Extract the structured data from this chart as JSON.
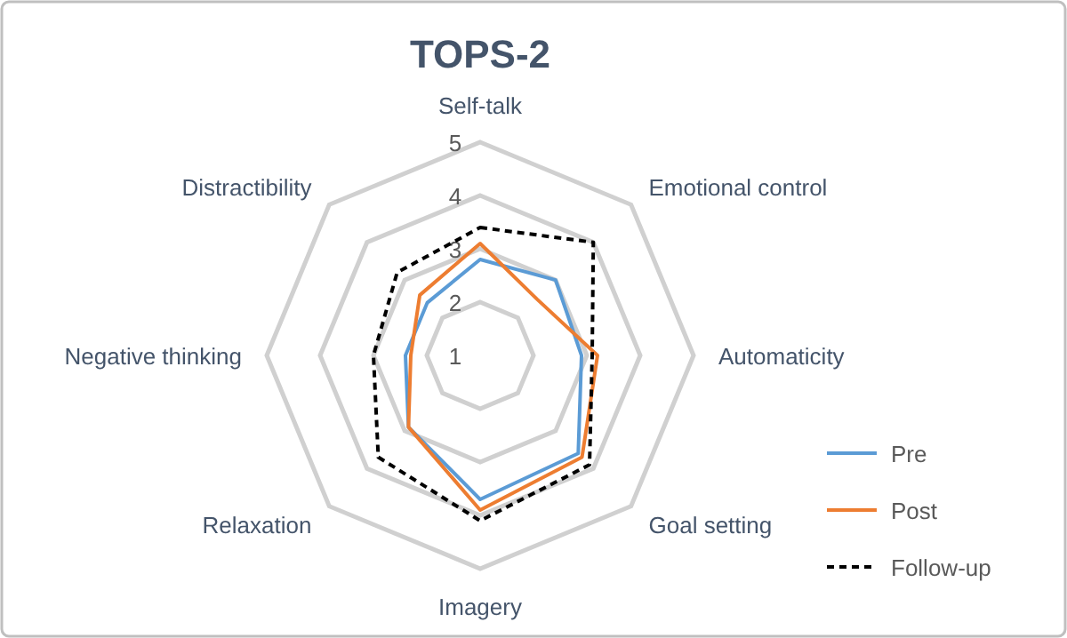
{
  "chart_data": {
    "type": "radar",
    "title": "TOPS-2",
    "categories": [
      "Self-talk",
      "Emotional control",
      "Automaticity",
      "Goal setting",
      "Imagery",
      "Relaxation",
      "Negative thinking",
      "Distractibility"
    ],
    "ylim": [
      1,
      5
    ],
    "yticks": [
      1,
      2,
      3,
      4,
      5
    ],
    "grid": true,
    "legend": "bottom right",
    "series": [
      {
        "name": "Pre",
        "color": "#5b9bd5",
        "line_style": "solid",
        "values": [
          2.8,
          3.0,
          2.9,
          3.6,
          3.7,
          2.9,
          2.4,
          2.4
        ]
      },
      {
        "name": "Post",
        "color": "#ed7d31",
        "line_style": "solid",
        "values": [
          3.1,
          2.5,
          3.2,
          3.7,
          3.9,
          2.9,
          2.3,
          2.6
        ]
      },
      {
        "name": "Follow-up",
        "color": "#000000",
        "line_style": "dashed",
        "values": [
          3.4,
          4.0,
          3.1,
          3.9,
          4.1,
          3.7,
          3.0,
          3.2
        ]
      }
    ]
  }
}
